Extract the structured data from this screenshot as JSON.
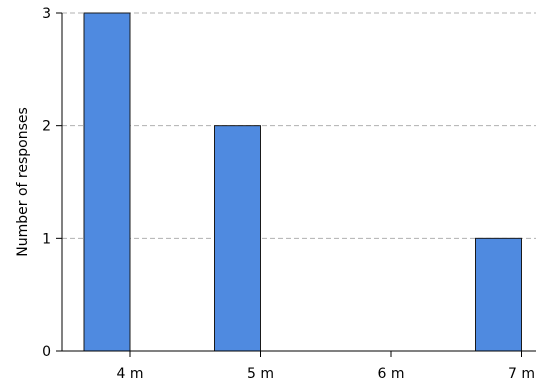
{
  "chart_data": {
    "type": "bar",
    "categories": [
      "4 m",
      "5 m",
      "6 m",
      "7 m"
    ],
    "values": [
      3,
      2,
      0,
      1
    ],
    "title": "",
    "xlabel": "",
    "ylabel": "Number of responses",
    "ylim": [
      0,
      3
    ],
    "yticks": [
      "0",
      "1",
      "2",
      "3"
    ],
    "grid": "horizontal dashed",
    "legend": "none",
    "bar_color": "#4f8ae0",
    "bar_edge_color": "#1a1a1a",
    "grid_color": "#b0b0b0"
  }
}
